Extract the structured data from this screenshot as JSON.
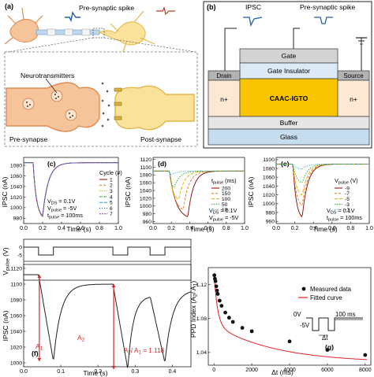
{
  "panel_a": {
    "label": "(a)",
    "presynaptic_spike": "Pre-synaptic spike",
    "neurotransmitters": "Neurotransmitters",
    "pre_synapse": "Pre-synapse",
    "post_synapse": "Post-synapse",
    "colors": {
      "pre": "#f6c49a",
      "post": "#fbe29b",
      "pre_border": "#e08a55",
      "post_border": "#e2b648"
    }
  },
  "panel_b": {
    "label": "(b)",
    "ipsc": "IPSC",
    "presynaptic_spike": "Pre-synaptic spike",
    "gate": "Gate",
    "gate_insulator": "Gate Insulator",
    "drain": "Drain",
    "source": "Source",
    "n_plus_left": "n+",
    "n_plus_right": "n+",
    "channel": "CAAC-IGTO",
    "buffer": "Buffer",
    "glass": "Glass",
    "colors": {
      "gate": "#d3d3d3",
      "insulator": "#dce9f7",
      "channel": "#f9c500",
      "electrode": "#b3b3b3",
      "buffer": "#e6e6e6",
      "glass": "#c6dcef",
      "nplus": "#fde8d4"
    }
  },
  "panel_c": {
    "label": "(c)",
    "ylabel": "IPSC (nA)",
    "xlabel": "Time (s)",
    "yticks": [
      "980",
      "1000",
      "1020",
      "1040",
      "1060",
      "1080"
    ],
    "xticks": [
      "0.0",
      "0.2",
      "0.4",
      "0.6",
      "0.8",
      "1.0"
    ],
    "legend_title": "Cycle (#)",
    "legend_items": [
      "1",
      "2",
      "3",
      "4",
      "5",
      "6",
      "7"
    ],
    "ann": [
      "V",
      "DS",
      " = 0.1V",
      "V",
      "pulse",
      " = -5V",
      "t",
      "pulse",
      " = 100ms"
    ]
  },
  "panel_d": {
    "label": "(d)",
    "ylabel": "IPSC (nA)",
    "xlabel": "Time (s)",
    "yticks": [
      "960",
      "980",
      "1000",
      "1020",
      "1040",
      "1060",
      "1080",
      "1100",
      "1120"
    ],
    "xticks": [
      "0.0",
      "0.2",
      "0.4",
      "0.6",
      "0.8",
      "1.0"
    ],
    "legend_title": "t",
    "legend_title_sub": "pulse",
    "legend_title_unit": " (ms)",
    "legend_items": [
      "200",
      "150",
      "100",
      "50",
      "10"
    ],
    "ann": [
      "V",
      "DS",
      " = 0.1V",
      "V",
      "pulse",
      " = -5V"
    ]
  },
  "panel_e": {
    "label": "(e)",
    "ylabel": "IPSC (nA)",
    "xlabel": "Time (s)",
    "yticks": [
      "960",
      "980",
      "1000",
      "1020",
      "1040",
      "1060",
      "1080",
      "1100"
    ],
    "xticks": [
      "0.0",
      "0.2",
      "0.4",
      "0.6",
      "0.8",
      "1.0"
    ],
    "legend_title": "V",
    "legend_title_sub": "pulse",
    "legend_title_unit": " (V)",
    "legend_items": [
      "-9",
      "-7",
      "-5",
      "-3",
      "-1"
    ],
    "ann": [
      "V",
      "DS",
      " = 0.1V",
      "t",
      "pulse",
      " = 100ms"
    ]
  },
  "panel_f": {
    "label": "(f)",
    "ylabel_top": "V",
    "ylabel_top_sub": "pulse",
    "ylabel_top_unit": " (V)",
    "ylabel": "IPSC (nA)",
    "xlabel": "Time (s)",
    "yticks_top": [
      "0",
      "-5"
    ],
    "yticks": [
      "1000",
      "1020",
      "1040",
      "1060",
      "1080",
      "1100",
      "1120"
    ],
    "xticks": [
      "0.0",
      "0.1",
      "0.2",
      "0.3",
      "0.4"
    ],
    "a1": "A",
    "a1_sub": "1",
    "a2": "A",
    "a2_sub": "2",
    "ratio": "A2/ A1 = 1.118",
    "ratio_parts": [
      "A",
      "2",
      "/ A",
      "1",
      " = 1.118"
    ]
  },
  "panel_g": {
    "label": "(g)",
    "ylabel": "PPD Index (A2/ A1)",
    "ylabel_parts": [
      "PPD Index (A",
      "2",
      "/ A",
      "1",
      ")"
    ],
    "xlabel": "Δt (ms)",
    "yticks": [
      "1.04",
      "1.08",
      "1.12"
    ],
    "xticks": [
      "0",
      "2000",
      "4000",
      "6000",
      "8000"
    ],
    "legend": [
      "Measured data",
      "Fitted curve"
    ],
    "inset": [
      "0V",
      "100 ms",
      "-5V",
      "Δt"
    ]
  },
  "chart_data": [
    {
      "type": "line",
      "title": "(c)",
      "xlabel": "Time (s)",
      "ylabel": "IPSC (nA)",
      "xlim": [
        0,
        1
      ],
      "ylim": [
        970,
        1095
      ],
      "series_names": [
        "1",
        "2",
        "3",
        "4",
        "5",
        "6",
        "7"
      ],
      "baseline": 1085,
      "pulse_start": 0.1,
      "pulse_end": 0.2,
      "minimum": 977
    },
    {
      "type": "line",
      "title": "(d)",
      "xlabel": "Time (s)",
      "ylabel": "IPSC (nA)",
      "xlim": [
        0,
        1
      ],
      "ylim": [
        955,
        1125
      ],
      "series": [
        {
          "name": "200",
          "minimum": 965
        },
        {
          "name": "150",
          "minimum": 985
        },
        {
          "name": "100",
          "minimum": 1012
        },
        {
          "name": "50",
          "minimum": 1045
        },
        {
          "name": "10",
          "minimum": 1078
        }
      ],
      "baseline": 1090
    },
    {
      "type": "line",
      "title": "(e)",
      "xlabel": "Time (s)",
      "ylabel": "IPSC (nA)",
      "xlim": [
        0,
        1
      ],
      "ylim": [
        955,
        1105
      ],
      "series": [
        {
          "name": "-9",
          "minimum": 962
        },
        {
          "name": "-7",
          "minimum": 990
        },
        {
          "name": "-5",
          "minimum": 1015
        },
        {
          "name": "-3",
          "minimum": 1045
        },
        {
          "name": "-1",
          "minimum": 1078
        }
      ],
      "baseline": 1090
    },
    {
      "type": "line",
      "title": "(f)",
      "xlabel": "Time (s)",
      "ylabel": "IPSC (nA)",
      "xlim": [
        0,
        0.45
      ],
      "ylim": [
        995,
        1125
      ],
      "pulses": [
        [
          0.04,
          0.08
        ],
        [
          0.24,
          0.28
        ],
        [
          0.34,
          0.38
        ]
      ],
      "A1": 1.0,
      "A2_over_A1": 1.118
    },
    {
      "type": "scatter",
      "title": "(g)",
      "xlabel": "Δt (ms)",
      "ylabel": "PPD Index (A2/ A1)",
      "xlim": [
        -300,
        8300
      ],
      "ylim": [
        1.025,
        1.14
      ],
      "x": [
        20,
        50,
        80,
        120,
        160,
        200,
        300,
        400,
        600,
        800,
        1000,
        1500,
        2000,
        4000,
        6000,
        8000
      ],
      "y": [
        1.131,
        1.127,
        1.124,
        1.118,
        1.113,
        1.109,
        1.101,
        1.095,
        1.087,
        1.081,
        1.076,
        1.069,
        1.065,
        1.053,
        1.043,
        1.037
      ]
    }
  ]
}
